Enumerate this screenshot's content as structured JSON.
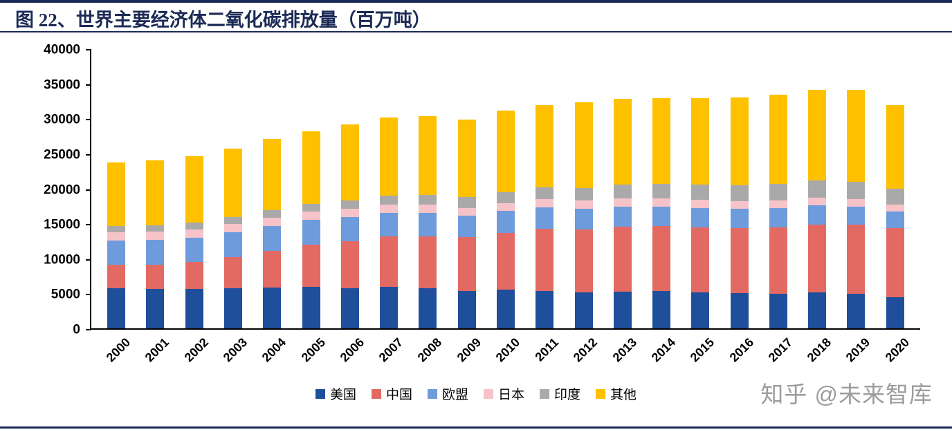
{
  "title": "图 22、世界主要经济体二氧化碳排放量（百万吨）",
  "watermark": "知乎 @未来智库",
  "accent_color": "#1b2a55",
  "chart_data": {
    "type": "bar",
    "stacked": true,
    "title": "世界主要经济体二氧化碳排放量（百万吨）",
    "xlabel": "",
    "ylabel": "",
    "ylim": [
      0,
      40000
    ],
    "yticks": [
      0,
      5000,
      10000,
      15000,
      20000,
      25000,
      30000,
      35000,
      40000
    ],
    "grid": false,
    "legend_position": "bottom",
    "categories": [
      "2000",
      "2001",
      "2002",
      "2003",
      "2004",
      "2005",
      "2006",
      "2007",
      "2008",
      "2009",
      "2010",
      "2011",
      "2012",
      "2013",
      "2014",
      "2015",
      "2016",
      "2017",
      "2018",
      "2019",
      "2020"
    ],
    "series": [
      {
        "name": "美国",
        "color": "#1f4e9b",
        "values": [
          5700,
          5600,
          5600,
          5700,
          5800,
          5900,
          5700,
          5900,
          5700,
          5300,
          5500,
          5300,
          5100,
          5200,
          5300,
          5100,
          5000,
          4900,
          5100,
          4900,
          4400
        ]
      },
      {
        "name": "中国",
        "color": "#e36a62",
        "values": [
          3400,
          3500,
          3900,
          4500,
          5300,
          6100,
          6700,
          7200,
          7400,
          7700,
          8100,
          8900,
          9000,
          9300,
          9300,
          9300,
          9300,
          9500,
          9700,
          9900,
          9900
        ]
      },
      {
        "name": "欧盟",
        "color": "#6e9bdc",
        "values": [
          3400,
          3500,
          3400,
          3500,
          3500,
          3500,
          3500,
          3400,
          3400,
          3100,
          3200,
          3100,
          3000,
          2900,
          2800,
          2800,
          2800,
          2800,
          2800,
          2600,
          2400
        ]
      },
      {
        "name": "日本",
        "color": "#f6c3c8",
        "values": [
          1200,
          1200,
          1200,
          1200,
          1200,
          1200,
          1200,
          1200,
          1200,
          1100,
          1100,
          1200,
          1200,
          1200,
          1200,
          1200,
          1100,
          1100,
          1100,
          1100,
          1000
        ]
      },
      {
        "name": "印度",
        "color": "#a9a9a9",
        "values": [
          900,
          900,
          1000,
          1000,
          1100,
          1100,
          1200,
          1300,
          1400,
          1600,
          1600,
          1700,
          1800,
          1900,
          2000,
          2100,
          2200,
          2300,
          2400,
          2400,
          2300
        ]
      },
      {
        "name": "其他",
        "color": "#ffc000",
        "values": [
          9100,
          9300,
          9500,
          9800,
          10200,
          10400,
          10800,
          11100,
          11200,
          11000,
          11600,
          11700,
          12200,
          12300,
          12300,
          12400,
          12600,
          12800,
          13000,
          13200,
          11900
        ]
      }
    ]
  }
}
